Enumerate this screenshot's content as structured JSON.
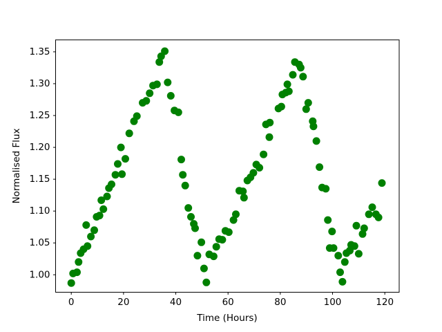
{
  "figure": {
    "background": "#ffffff",
    "axis_color": "#000000",
    "tick_label_color": "#000000"
  },
  "chart_data": {
    "type": "scatter",
    "title": "",
    "xlabel": "Time (Hours)",
    "ylabel": "Normalised Flux",
    "grid": false,
    "legend": false,
    "xlim": [
      -6.0,
      125.5
    ],
    "ylim": [
      0.9726,
      1.3687
    ],
    "xticks": [
      0,
      20,
      40,
      60,
      80,
      100,
      120
    ],
    "xtick_labels": [
      "0",
      "20",
      "40",
      "60",
      "80",
      "100",
      "120"
    ],
    "yticks": [
      1.0,
      1.05,
      1.1,
      1.15,
      1.2,
      1.25,
      1.3,
      1.35
    ],
    "ytick_labels": [
      "1.00",
      "1.05",
      "1.10",
      "1.15",
      "1.20",
      "1.25",
      "1.30",
      "1.35"
    ],
    "marker": {
      "shape": "circle",
      "color": "#008000",
      "radius_px": 5.5
    },
    "series": [
      {
        "name": "normalised-flux",
        "color": "#008000",
        "x": [
          0.0,
          0.7,
          2.2,
          2.8,
          3.6,
          4.7,
          5.7,
          6.2,
          7.5,
          8.8,
          9.7,
          10.8,
          11.5,
          12.3,
          13.7,
          14.4,
          15.4,
          16.9,
          17.8,
          19.0,
          19.4,
          20.7,
          22.2,
          24.0,
          25.1,
          27.3,
          28.7,
          30.0,
          31.3,
          32.8,
          33.7,
          34.4,
          35.8,
          36.9,
          38.1,
          39.5,
          41.0,
          42.1,
          42.7,
          43.6,
          44.8,
          45.8,
          46.9,
          47.4,
          48.3,
          49.8,
          50.8,
          51.7,
          52.8,
          54.5,
          55.5,
          56.6,
          57.8,
          59.0,
          60.3,
          62.1,
          63.0,
          64.3,
          65.7,
          66.1,
          67.4,
          68.6,
          69.7,
          70.8,
          72.0,
          73.6,
          74.5,
          75.8,
          76.0,
          79.3,
          80.4,
          80.8,
          82.1,
          82.7,
          83.3,
          84.8,
          85.6,
          87.2,
          87.8,
          88.7,
          89.9,
          90.7,
          92.4,
          92.7,
          93.8,
          95.0,
          96.0,
          97.4,
          98.2,
          98.9,
          99.8,
          100.4,
          102.2,
          102.9,
          103.8,
          104.7,
          105.3,
          106.6,
          107.1,
          108.4,
          109.1,
          110.0,
          111.5,
          112.1,
          113.9,
          115.2,
          116.6,
          117.6,
          118.9
        ],
        "y": [
          0.987,
          1.002,
          1.004,
          1.02,
          1.034,
          1.04,
          1.078,
          1.045,
          1.06,
          1.07,
          1.091,
          1.093,
          1.117,
          1.103,
          1.123,
          1.136,
          1.142,
          1.157,
          1.174,
          1.2,
          1.158,
          1.182,
          1.222,
          1.241,
          1.249,
          1.27,
          1.273,
          1.285,
          1.297,
          1.299,
          1.334,
          1.343,
          1.351,
          1.302,
          1.281,
          1.258,
          1.255,
          1.181,
          1.157,
          1.14,
          1.105,
          1.091,
          1.08,
          1.073,
          1.03,
          1.051,
          1.01,
          0.988,
          1.032,
          1.029,
          1.044,
          1.056,
          1.055,
          1.069,
          1.067,
          1.086,
          1.095,
          1.132,
          1.131,
          1.121,
          1.148,
          1.153,
          1.16,
          1.173,
          1.168,
          1.189,
          1.236,
          1.216,
          1.239,
          1.261,
          1.264,
          1.283,
          1.286,
          1.299,
          1.288,
          1.314,
          1.334,
          1.33,
          1.325,
          1.311,
          1.26,
          1.27,
          1.241,
          1.233,
          1.21,
          1.169,
          1.137,
          1.135,
          1.086,
          1.042,
          1.068,
          1.042,
          1.03,
          1.004,
          0.989,
          1.02,
          1.034,
          1.038,
          1.047,
          1.045,
          1.077,
          1.033,
          1.064,
          1.073,
          1.095,
          1.106,
          1.095,
          1.09,
          1.144
        ]
      }
    ]
  }
}
